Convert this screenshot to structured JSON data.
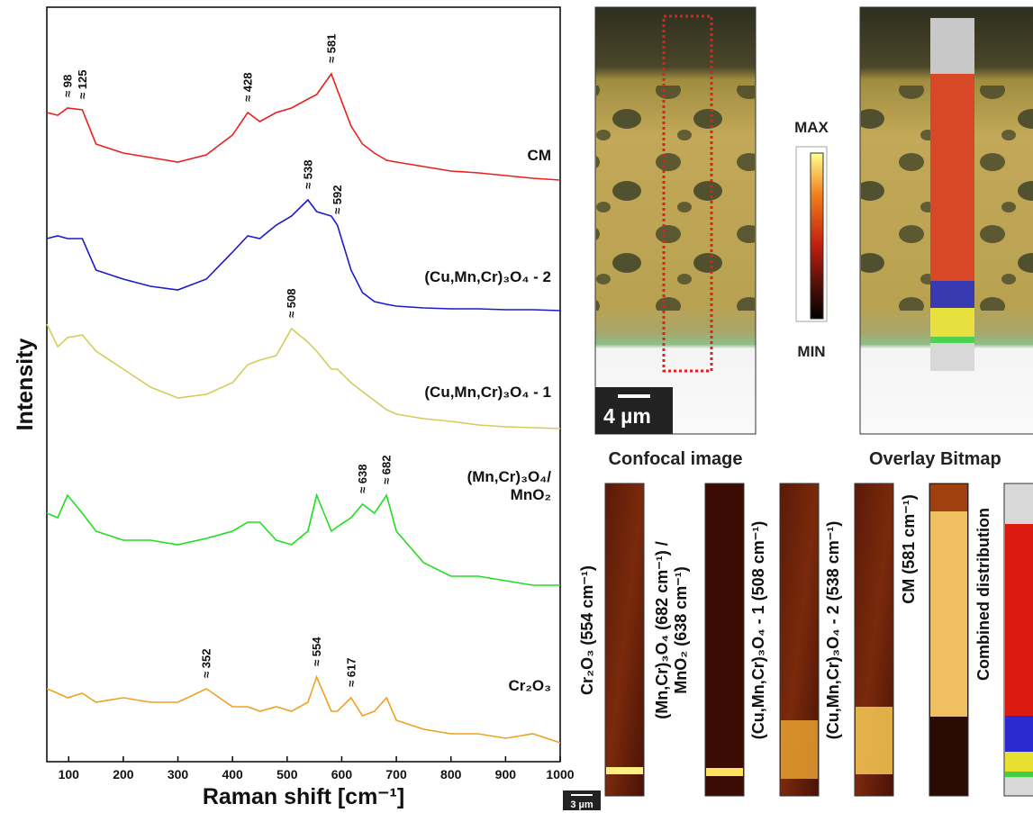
{
  "chart_data": {
    "type": "line",
    "x_label": "Raman shift [cm⁻¹]",
    "y_label": "Intensity",
    "xlim": [
      60,
      1000
    ],
    "xticks": [
      100,
      200,
      300,
      400,
      500,
      600,
      700,
      800,
      900,
      1000
    ],
    "ylim": [
      0,
      838
    ],
    "x": [
      60,
      80,
      98,
      125,
      150,
      200,
      250,
      300,
      352,
      400,
      428,
      450,
      480,
      508,
      538,
      554,
      581,
      592,
      617,
      638,
      660,
      682,
      700,
      750,
      800,
      850,
      900,
      950,
      1000
    ],
    "series": [
      {
        "name": "CM",
        "color": "#e8201e",
        "values": [
          721,
          718,
          726,
          724,
          686,
          676,
          671,
          666,
          674,
          696,
          721,
          711,
          721,
          726,
          736,
          741,
          764,
          746,
          706,
          686,
          676,
          668,
          666,
          661,
          656,
          654,
          651,
          648,
          646
        ],
        "peaks": [
          {
            "x": 98,
            "label": "≈ 98"
          },
          {
            "x": 125,
            "label": "≈ 125"
          },
          {
            "x": 428,
            "label": "≈ 428"
          },
          {
            "x": 581,
            "label": "≈ 581"
          }
        ]
      },
      {
        "name": "(Cu,Mn,Cr)₃O₄ - 2",
        "color": "#1a1acc",
        "values": [
          581,
          584,
          581,
          581,
          546,
          536,
          528,
          524,
          536,
          566,
          584,
          581,
          596,
          606,
          624,
          611,
          606,
          596,
          546,
          521,
          511,
          508,
          506,
          504,
          503,
          503,
          502,
          502,
          501
        ],
        "peaks": [
          {
            "x": 538,
            "label": "≈ 538"
          },
          {
            "x": 592,
            "label": "≈ 592"
          }
        ]
      },
      {
        "name": "(Cu,Mn,Cr)₃O₄ - 1",
        "color": "#d4cc5a",
        "values": [
          486,
          461,
          471,
          474,
          456,
          436,
          416,
          404,
          408,
          421,
          441,
          446,
          451,
          481,
          466,
          456,
          436,
          436,
          421,
          411,
          401,
          391,
          386,
          381,
          378,
          374,
          372,
          371,
          370
        ],
        "peaks": [
          {
            "x": 508,
            "label": "≈ 508"
          }
        ]
      },
      {
        "name": "(Mn,Cr)₃O₄/\nMnO₂",
        "color": "#22dd22",
        "values": [
          276,
          271,
          296,
          276,
          256,
          246,
          246,
          241,
          248,
          256,
          266,
          266,
          246,
          241,
          256,
          296,
          256,
          261,
          271,
          286,
          276,
          296,
          256,
          221,
          206,
          206,
          201,
          196,
          196
        ],
        "peaks": [
          {
            "x": 638,
            "label": "≈ 638"
          },
          {
            "x": 682,
            "label": "≈ 682"
          }
        ]
      },
      {
        "name": "Cr₂O₃",
        "color": "#f0a020",
        "values": [
          81,
          76,
          71,
          76,
          66,
          71,
          66,
          66,
          81,
          61,
          61,
          56,
          61,
          56,
          66,
          94,
          56,
          56,
          71,
          51,
          56,
          71,
          46,
          36,
          31,
          31,
          26,
          31,
          21
        ],
        "peaks": [
          {
            "x": 352,
            "label": "≈ 352"
          },
          {
            "x": 554,
            "label": "≈ 554"
          },
          {
            "x": 617,
            "label": "≈ 617"
          }
        ]
      }
    ]
  },
  "panels": {
    "confocal": {
      "caption": "Confocal image",
      "scale_bar": "4 µm"
    },
    "colorbar": {
      "max": "MAX",
      "min": "MIN"
    },
    "overlay": {
      "caption": "Overlay Bitmap"
    },
    "maps": {
      "labels": [
        "Cr₂O₃ (554 cm⁻¹)",
        "(Mn,Cr)₃O₄ (682 cm⁻¹) /\nMnO₂ (638 cm⁻¹)",
        "(Cu,Mn,Cr)₃O₄ - 1 (508 cm⁻¹)",
        "(Cu,Mn,Cr)₃O₄ - 2 (538 cm⁻¹)",
        "CM (581 cm⁻¹)",
        "Combined distribution"
      ],
      "scale_bar": "3 µm"
    }
  }
}
